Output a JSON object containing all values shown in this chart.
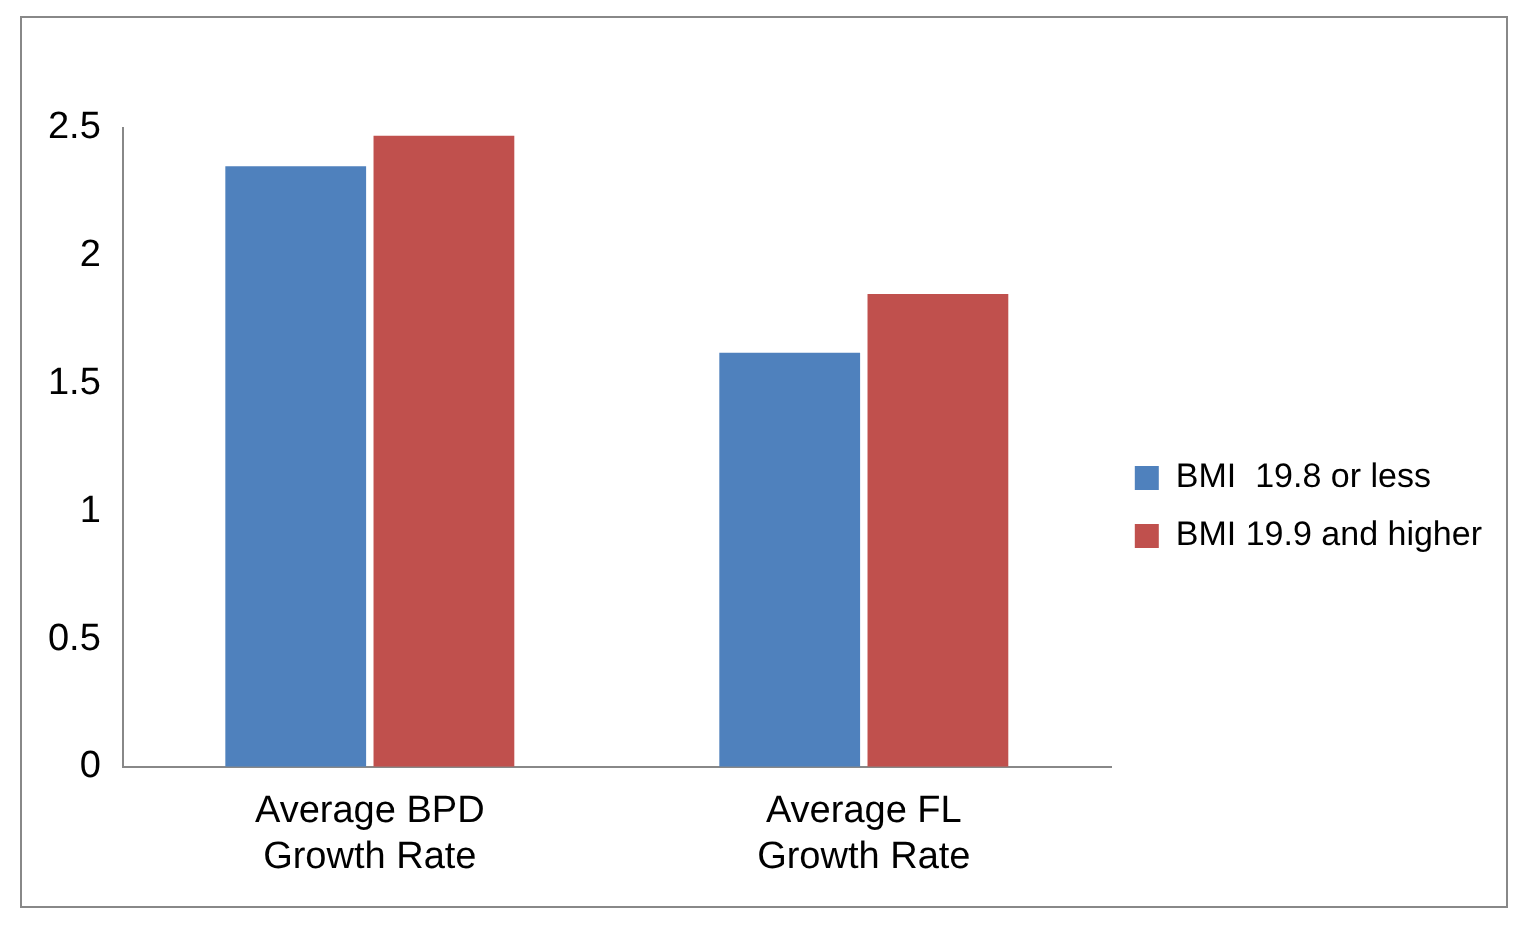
{
  "chart_data": {
    "type": "bar",
    "categories": [
      "Average BPD Growth Rate",
      "Average FL Growth Rate"
    ],
    "series": [
      {
        "name": "BMI  19.8 or less",
        "color": "#4f81bd",
        "values": [
          2.35,
          1.62
        ]
      },
      {
        "name": "BMI 19.9 and higher",
        "color": "#c0504d",
        "values": [
          2.47,
          1.85
        ]
      }
    ],
    "ylim": [
      0,
      2.5
    ],
    "yticks": [
      0,
      0.5,
      1,
      1.5,
      2,
      2.5
    ],
    "grid": false,
    "legend": "right"
  }
}
